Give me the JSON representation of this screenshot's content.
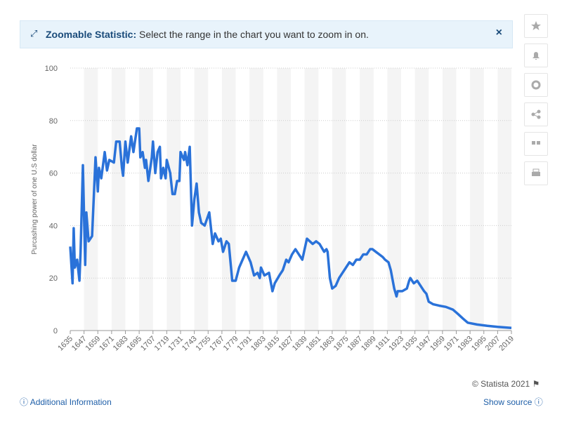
{
  "banner": {
    "title": "Zoomable Statistic:",
    "text": "Select the range in the chart you want to zoom in on."
  },
  "footer": {
    "copyright": "© Statista 2021",
    "additional_info": "Additional Information",
    "show_source": "Show source"
  },
  "chart_data": {
    "type": "line",
    "ylabel": "Purcashing power of one U.S dollar",
    "xlim": [
      1635,
      2019
    ],
    "xticks": [
      1635,
      1647,
      1659,
      1671,
      1683,
      1695,
      1707,
      1719,
      1731,
      1743,
      1755,
      1767,
      1779,
      1791,
      1803,
      1815,
      1827,
      1839,
      1851,
      1863,
      1875,
      1887,
      1899,
      1911,
      1923,
      1935,
      1947,
      1959,
      1971,
      1983,
      1995,
      2007,
      2019
    ],
    "ylim": [
      0,
      100
    ],
    "yticks": [
      0,
      20,
      40,
      60,
      80,
      100
    ],
    "grid": true,
    "x": [
      1635,
      1637,
      1638,
      1639,
      1641,
      1643,
      1644,
      1646,
      1648,
      1649,
      1651,
      1654,
      1657,
      1659,
      1660,
      1662,
      1665,
      1667,
      1669,
      1673,
      1675,
      1678,
      1680,
      1681,
      1683,
      1685,
      1688,
      1690,
      1693,
      1695,
      1696,
      1698,
      1700,
      1701,
      1703,
      1706,
      1707,
      1709,
      1711,
      1713,
      1714,
      1716,
      1718,
      1719,
      1722,
      1724,
      1726,
      1728,
      1730,
      1731,
      1734,
      1735,
      1737,
      1739,
      1741,
      1743,
      1745,
      1747,
      1749,
      1752,
      1756,
      1759,
      1761,
      1764,
      1766,
      1768,
      1771,
      1773,
      1776,
      1779,
      1782,
      1784,
      1788,
      1792,
      1795,
      1798,
      1800,
      1801,
      1804,
      1808,
      1811,
      1813,
      1817,
      1820,
      1823,
      1825,
      1828,
      1831,
      1834,
      1837,
      1838,
      1841,
      1846,
      1849,
      1852,
      1856,
      1858,
      1859,
      1861,
      1863,
      1866,
      1869,
      1872,
      1875,
      1878,
      1881,
      1884,
      1887,
      1890,
      1893,
      1896,
      1898,
      1901,
      1904,
      1907,
      1909,
      1912,
      1914,
      1917,
      1919,
      1920,
      1924,
      1928,
      1930,
      1931,
      1934,
      1937,
      1940,
      1943,
      1945,
      1947,
      1951,
      1956,
      1962,
      1968,
      1972,
      1977,
      1981,
      1989,
      1998,
      2007,
      2019
    ],
    "series": [
      {
        "name": "Purchasing power",
        "color": "#2a72d9",
        "values": [
          32,
          18,
          39,
          24,
          27,
          19,
          30,
          63,
          25,
          45,
          34,
          36,
          66,
          53,
          62,
          58,
          68,
          61,
          65,
          64,
          72,
          72,
          62,
          59,
          72,
          64,
          74,
          68,
          77,
          77,
          66,
          68,
          62,
          65,
          57,
          66,
          72,
          60,
          68,
          70,
          58,
          62,
          58,
          65,
          60,
          52,
          52,
          57,
          57,
          68,
          65,
          68,
          63,
          70,
          40,
          50,
          56,
          45,
          41,
          40,
          45,
          33,
          37,
          34,
          35,
          30,
          34,
          33,
          19,
          19,
          24,
          26,
          30,
          26,
          21,
          22,
          20,
          24,
          21,
          22,
          15,
          18,
          21,
          23,
          27,
          26,
          29,
          31,
          29,
          27,
          29,
          35,
          33,
          34,
          33,
          30,
          31,
          30,
          20,
          16,
          17,
          20,
          22,
          24,
          26,
          25,
          27,
          27,
          29,
          29,
          31,
          31,
          30,
          29,
          28,
          27,
          26,
          23,
          16,
          13,
          15,
          15,
          16,
          19,
          20,
          18,
          19,
          17,
          15,
          14,
          11,
          10,
          9.5,
          9,
          8,
          6.5,
          4.5,
          3,
          2.3,
          1.8,
          1.4,
          1.0
        ]
      }
    ]
  }
}
